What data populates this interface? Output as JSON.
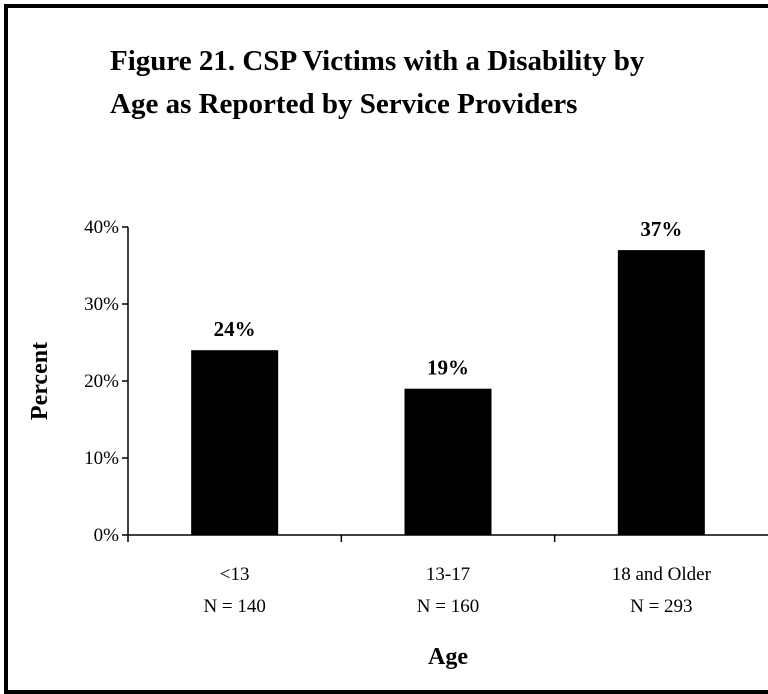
{
  "chart_data": {
    "type": "bar",
    "title": [
      "Figure 21.  CSP Victims with a Disability by",
      "Age as Reported by Service Providers"
    ],
    "xlabel": "Age",
    "ylabel": "Percent",
    "categories": [
      {
        "label": "<13",
        "n": "N = 140"
      },
      {
        "label": "13-17",
        "n": "N = 160"
      },
      {
        "label": "18 and Older",
        "n": "N = 293"
      }
    ],
    "values": [
      24,
      19,
      37
    ],
    "data_labels": [
      "24%",
      "19%",
      "37%"
    ],
    "yticks": [
      "0%",
      "10%",
      "20%",
      "30%",
      "40%"
    ],
    "ylim": [
      0,
      40
    ],
    "grid": false,
    "legend": "none",
    "bar_color": "#000000"
  }
}
